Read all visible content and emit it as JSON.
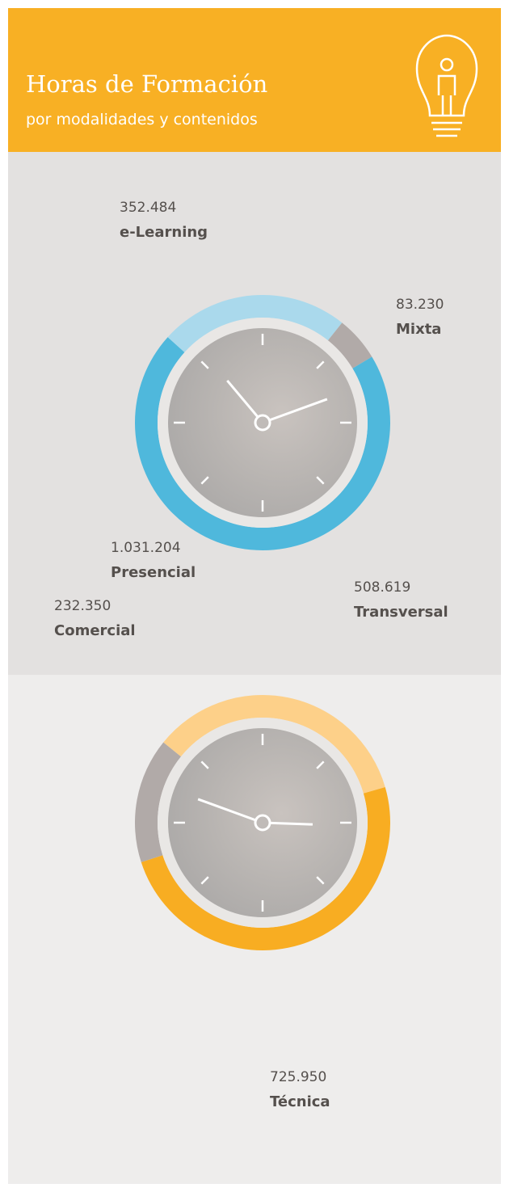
{
  "header": {
    "title": "Horas de Formación",
    "subtitle": "por modalidades y contenidos"
  },
  "chart_data": [
    {
      "type": "donut",
      "categories": [
        "e-Learning",
        "Mixta",
        "Presencial"
      ],
      "values": [
        352484,
        83230,
        1031204
      ],
      "value_labels": [
        "352.484",
        "83.230",
        "1.031.204"
      ],
      "colors": [
        "#aad9ec",
        "#b1aaa8",
        "#4fb8dc"
      ]
    },
    {
      "type": "donut",
      "categories": [
        "Transversal",
        "Técnica",
        "Comercial"
      ],
      "values": [
        508619,
        725950,
        232350
      ],
      "value_labels": [
        "508.619",
        "725.950",
        "232.350"
      ],
      "colors": [
        "#fdd089",
        "#f8ad22",
        "#b1aaa8"
      ]
    }
  ]
}
